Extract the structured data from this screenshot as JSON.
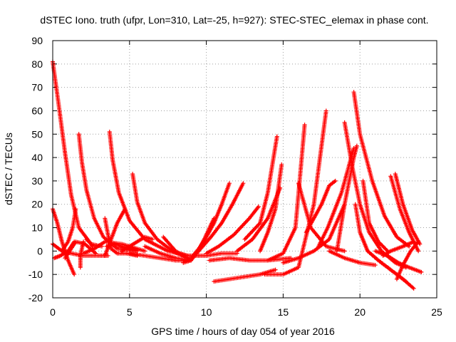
{
  "chart_data": {
    "type": "scatter",
    "title": "dSTEC Iono. truth (ufpr, Lon=310, Lat=-25, h=927): STEC-STEC_elemax in phase cont.",
    "xlabel": "GPS time / hours of day 054 of year 2016",
    "ylabel": "dSTEC  / TECUs",
    "xlim": [
      0,
      25
    ],
    "ylim": [
      -20,
      90
    ],
    "xticks": [
      0,
      5,
      10,
      15,
      20,
      25
    ],
    "yticks": [
      -20,
      -10,
      0,
      10,
      20,
      30,
      40,
      50,
      60,
      70,
      80,
      90
    ],
    "grid": true,
    "marker": "+",
    "series_color": "#ff0000",
    "series": [
      {
        "x": [
          0.0,
          0.3,
          0.6,
          1.0,
          1.4
        ],
        "y": [
          18,
          12,
          4,
          -4,
          -10
        ]
      },
      {
        "x": [
          0.0,
          0.4,
          0.8,
          1.2,
          1.7,
          2.5,
          3.2
        ],
        "y": [
          81,
          62,
          42,
          24,
          10,
          3,
          2
        ]
      },
      {
        "x": [
          0.0,
          0.6,
          1.2,
          2.0,
          3.0,
          3.6
        ],
        "y": [
          3,
          0,
          -1,
          -2,
          -2,
          -2
        ]
      },
      {
        "x": [
          0.1,
          0.5,
          1.0,
          1.4
        ],
        "y": [
          -3,
          -2,
          0,
          4
        ]
      },
      {
        "x": [
          0.8,
          1.1,
          1.5,
          2.1,
          2.8
        ],
        "y": [
          -3,
          0,
          4,
          3,
          -1
        ]
      },
      {
        "x": [
          1.5,
          1.3,
          1.0,
          0.6
        ],
        "y": [
          18,
          10,
          4,
          0
        ]
      },
      {
        "x": [
          1.7,
          1.9,
          2.2,
          2.7,
          3.3,
          4.2,
          5.5
        ],
        "y": [
          50,
          38,
          26,
          14,
          6,
          1,
          0
        ]
      },
      {
        "x": [
          1.8,
          1.8,
          2.0
        ],
        "y": [
          -7,
          -2,
          4
        ]
      },
      {
        "x": [
          2.0,
          2.7,
          3.4,
          4.5,
          6.0
        ],
        "y": [
          -1,
          1,
          4,
          3,
          0
        ]
      },
      {
        "x": [
          2.2,
          2.5,
          2.6
        ],
        "y": [
          5,
          3,
          2
        ]
      },
      {
        "x": [
          3.4,
          3.6,
          3.8,
          4.2,
          4.8,
          5.5
        ],
        "y": [
          14,
          7,
          1,
          -1,
          -1,
          -2
        ]
      },
      {
        "x": [
          3.7,
          3.9,
          4.3,
          5.0,
          6.0,
          7.5,
          8.8
        ],
        "y": [
          51,
          39,
          25,
          13,
          5,
          0,
          -2
        ]
      },
      {
        "x": [
          3.4,
          3.8,
          4.2,
          4.7
        ],
        "y": [
          -2,
          5,
          12,
          18
        ]
      },
      {
        "x": [
          3.5,
          4.0,
          4.5,
          5.5
        ],
        "y": [
          2,
          3,
          2,
          0
        ]
      },
      {
        "x": [
          5.2,
          5.5,
          6.0,
          6.8,
          7.8,
          8.8
        ],
        "y": [
          33,
          21,
          12,
          5,
          0,
          -3
        ]
      },
      {
        "x": [
          5.0,
          6.0,
          7.0,
          8.0,
          9.0
        ],
        "y": [
          -1,
          -2,
          -3,
          -4,
          -4
        ]
      },
      {
        "x": [
          4.5,
          5.0,
          5.5,
          6.0,
          6.5
        ],
        "y": [
          0,
          2,
          4,
          6,
          5
        ]
      },
      {
        "x": [
          6.0,
          7.0,
          8.0,
          9.0
        ],
        "y": [
          2,
          -1,
          -3,
          -4
        ]
      },
      {
        "x": [
          7.2,
          7.6,
          8.0,
          8.5,
          9.0
        ],
        "y": [
          6,
          3,
          0,
          -2,
          -4
        ]
      },
      {
        "x": [
          8.5,
          9.0,
          9.5,
          10.0,
          10.5
        ],
        "y": [
          -5,
          -4,
          0,
          7,
          14
        ]
      },
      {
        "x": [
          9.0,
          9.5,
          10.0,
          10.5,
          11.0,
          11.5
        ],
        "y": [
          -3,
          1,
          6,
          12,
          20,
          29
        ]
      },
      {
        "x": [
          8.3,
          8.8,
          9.4,
          10.0,
          11.0,
          12.0
        ],
        "y": [
          -1,
          -2,
          -2,
          -2,
          -1,
          -1
        ]
      },
      {
        "x": [
          9.5,
          10.3,
          11.0,
          11.7,
          12.4
        ],
        "y": [
          0,
          6,
          12,
          20,
          29
        ]
      },
      {
        "x": [
          10.0,
          10.8,
          11.8,
          12.8,
          13.4
        ],
        "y": [
          -1,
          2,
          7,
          14,
          19
        ]
      },
      {
        "x": [
          10.5,
          11.5,
          12.5,
          13.5,
          14.5
        ],
        "y": [
          -13,
          -12,
          -11,
          -10,
          -8
        ]
      },
      {
        "x": [
          10.2,
          11.5,
          12.8,
          14.0,
          15.5
        ],
        "y": [
          -4,
          -3,
          -4,
          -4,
          -3
        ]
      },
      {
        "x": [
          12.0,
          13.0,
          14.0,
          14.8
        ],
        "y": [
          0,
          5,
          14,
          27
        ]
      },
      {
        "x": [
          12.5,
          13.5,
          14.0,
          14.6
        ],
        "y": [
          5,
          12,
          25,
          49
        ]
      },
      {
        "x": [
          13.5,
          14.0,
          14.5,
          14.9
        ],
        "y": [
          0,
          8,
          18,
          37
        ]
      },
      {
        "x": [
          14.0,
          15.0,
          15.8,
          16.4
        ],
        "y": [
          -4,
          -1,
          10,
          54
        ]
      },
      {
        "x": [
          13.8,
          15.0,
          16.0,
          17.0,
          17.8
        ],
        "y": [
          -10,
          -10,
          -7,
          20,
          60
        ]
      },
      {
        "x": [
          15.0,
          16.0,
          17.0,
          18.0,
          19.0
        ],
        "y": [
          -5,
          -3,
          0,
          5,
          20
        ]
      },
      {
        "x": [
          16.0,
          16.8,
          17.8,
          19.0
        ],
        "y": [
          29,
          10,
          2,
          0
        ]
      },
      {
        "x": [
          16.5,
          17.5,
          18.0,
          18.4
        ],
        "y": [
          8,
          20,
          28,
          30
        ]
      },
      {
        "x": [
          17.3,
          17.9,
          18.8,
          19.6
        ],
        "y": [
          2,
          10,
          25,
          44
        ]
      },
      {
        "x": [
          18.5,
          19.0,
          19.6,
          19.8
        ],
        "y": [
          0,
          20,
          40,
          45
        ]
      },
      {
        "x": [
          19.0,
          19.5,
          20.0,
          20.6,
          21.4,
          22.3,
          23.0
        ],
        "y": [
          55,
          36,
          20,
          8,
          0,
          -5,
          -7
        ]
      },
      {
        "x": [
          19.6,
          20.0,
          20.8,
          21.6,
          22.4,
          23.2
        ],
        "y": [
          68,
          50,
          30,
          15,
          6,
          2
        ]
      },
      {
        "x": [
          19.7,
          20.0,
          20.5,
          21.2,
          22.0,
          23.0
        ],
        "y": [
          20,
          8,
          0,
          -4,
          -8,
          -13
        ]
      },
      {
        "x": [
          20.2,
          20.6,
          21.2,
          21.8
        ],
        "y": [
          30,
          12,
          4,
          0
        ]
      },
      {
        "x": [
          20.5,
          21.2,
          22.0,
          22.8,
          23.5
        ],
        "y": [
          0,
          -4,
          -8,
          -12,
          -16
        ]
      },
      {
        "x": [
          21.0,
          21.8,
          22.5,
          23.2,
          24.0
        ],
        "y": [
          0,
          -2,
          -5,
          -7,
          -9
        ]
      },
      {
        "x": [
          22.0,
          22.6,
          23.2,
          23.8
        ],
        "y": [
          32,
          18,
          8,
          0
        ]
      },
      {
        "x": [
          22.3,
          22.8,
          23.4,
          23.9
        ],
        "y": [
          33,
          20,
          9,
          3
        ]
      },
      {
        "x": [
          22.4,
          22.8,
          23.3,
          23.8
        ],
        "y": [
          -12,
          -6,
          0,
          4
        ]
      },
      {
        "x": [
          21.5,
          22.0,
          22.8,
          23.5
        ],
        "y": [
          -2,
          0,
          2,
          4
        ]
      },
      {
        "x": [
          18.0,
          19.0,
          20.0,
          21.0
        ],
        "y": [
          0,
          -3,
          -5,
          -6
        ]
      }
    ]
  }
}
